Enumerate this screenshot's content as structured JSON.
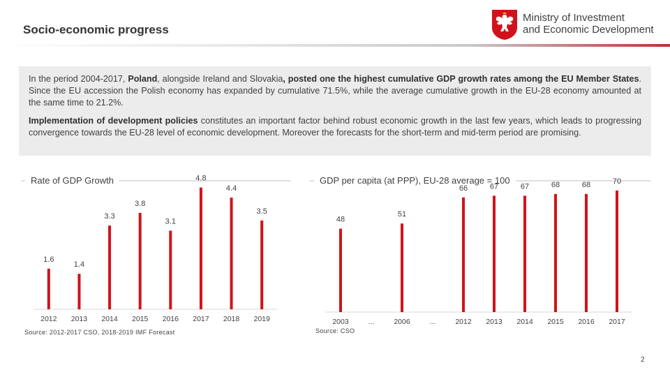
{
  "header": {
    "title": "Socio-economic progress",
    "logo_line1": "Ministry of Investment",
    "logo_line2": "and Economic Development"
  },
  "info": {
    "p1_a": "In the period 2004-2017, ",
    "p1_b": "Poland",
    "p1_c": ", alongside Ireland and Slovakia",
    "p1_d": ", posted one the highest cumulative GDP growth rates among the EU Member States",
    "p1_e": ". Since the EU accession the Polish economy has expanded by cumulative 71.5%, while the average cumulative growth in the EU-28 economy amounted at the same time to 21.2%.",
    "p2_a": "Implementation of development policies",
    "p2_b": " constitutes an important factor behind robust economic growth in the last few years, which leads to progressing convergence towards the EU-28 level of economic development. Moreover the forecasts for the short-term and mid-term period are promising."
  },
  "chart_data": [
    {
      "type": "bar",
      "title": "Rate of GDP Growth",
      "categories": [
        "2012",
        "2013",
        "2014",
        "2015",
        "2016",
        "2017",
        "2018",
        "2019"
      ],
      "values": [
        1.6,
        1.4,
        3.3,
        3.8,
        3.1,
        4.8,
        4.4,
        3.5
      ],
      "ylim": [
        0,
        6
      ],
      "grid": false,
      "color": "#d0131b",
      "source": "Source: 2012-2017 CSO, 2018-2019 IMF Forecast"
    },
    {
      "type": "bar",
      "title": "GDP per capita (at PPP), EU-28 average = 100",
      "categories": [
        "2003",
        "...",
        "2006",
        "...",
        "2012",
        "2013",
        "2014",
        "2015",
        "2016",
        "2017"
      ],
      "values": [
        48,
        null,
        51,
        null,
        66,
        67,
        67,
        68,
        68,
        70
      ],
      "ylim": [
        0,
        82
      ],
      "grid": false,
      "color": "#d0131b",
      "source": "Source: CSO"
    }
  ],
  "page_number": "2"
}
